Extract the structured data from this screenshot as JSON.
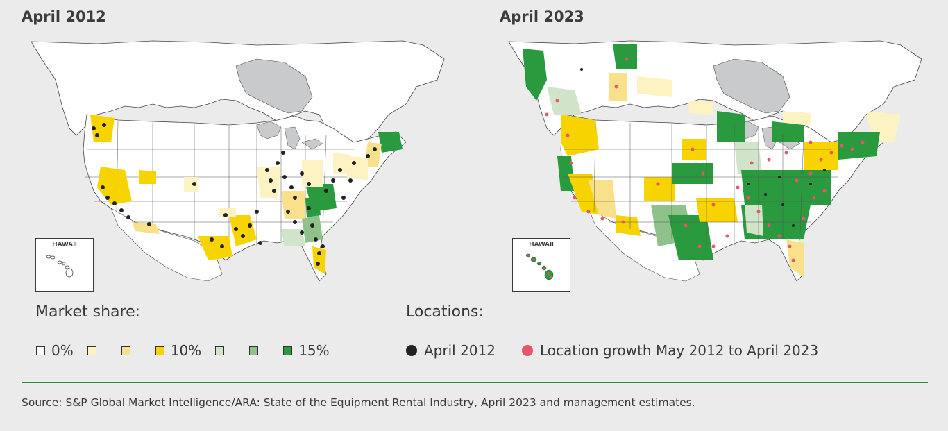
{
  "maps": {
    "left_title": "April 2012",
    "right_title": "April 2023",
    "hawaii_label": "HAWAII"
  },
  "legend": {
    "market_share_heading": "Market share:",
    "market_share_items": [
      {
        "label": "0%",
        "color": "#ffffff"
      },
      {
        "label": "",
        "color": "#fdf3c2"
      },
      {
        "label": "",
        "color": "#f9e08b"
      },
      {
        "label": "10%",
        "color": "#f7d300"
      },
      {
        "label": "",
        "color": "#cfe4c8"
      },
      {
        "label": "",
        "color": "#8fc28a"
      },
      {
        "label": "15%",
        "color": "#2a9a3e"
      }
    ],
    "locations_heading": "Locations:",
    "locations_items": [
      {
        "label": "April 2012",
        "color": "#222222"
      },
      {
        "label": "Location growth May 2012 to April 2023",
        "color": "#e8546a"
      }
    ]
  },
  "source": "Source: S&P Global Market Intelligence/ARA: State of the Equipment Rental Industry, April 2023 and management estimates.",
  "colors": {
    "background": "#eaebea",
    "land": "#ffffff",
    "water": "#c9cacb",
    "border": "#444444"
  }
}
